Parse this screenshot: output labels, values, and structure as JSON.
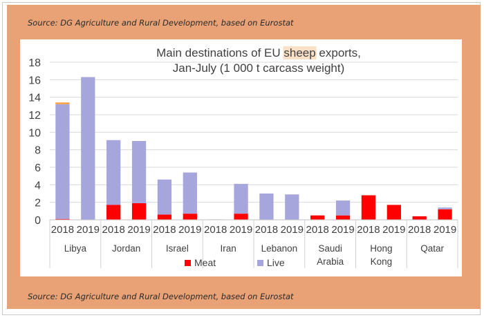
{
  "source_top": "Source: DG Agriculture and Rural Development, based on Eurostat",
  "source_bottom": "Source: DG Agriculture and Rural Development, based on Eurostat",
  "chart_data": {
    "type": "bar",
    "stacked": true,
    "title_line1_prefix": "Main destinations of EU ",
    "title_highlight": "sheep",
    "title_line1_suffix": " exports,",
    "title_line2": "Jan-July (1 000 t carcass weight)",
    "ylim": [
      0,
      18
    ],
    "yticks": [
      0,
      2,
      4,
      6,
      8,
      10,
      12,
      14,
      16,
      18
    ],
    "years": [
      "2018",
      "2019"
    ],
    "countries": [
      {
        "label": [
          "Libya"
        ]
      },
      {
        "label": [
          "Jordan"
        ]
      },
      {
        "label": [
          "Israel"
        ]
      },
      {
        "label": [
          "Iran"
        ]
      },
      {
        "label": [
          "Lebanon"
        ]
      },
      {
        "label": [
          "Saudi",
          "Arabia"
        ]
      },
      {
        "label": [
          "Hong",
          "Kong"
        ]
      },
      {
        "label": [
          "Qatar"
        ]
      }
    ],
    "series": [
      {
        "name": "Meat",
        "color": "#ff0000",
        "values": [
          0.1,
          0,
          1.7,
          1.9,
          0.6,
          0.7,
          0,
          0.7,
          0,
          0,
          0.5,
          0.5,
          2.8,
          1.7,
          0.4,
          1.2
        ]
      },
      {
        "name": "Live",
        "color": "#a6a6dc",
        "values": [
          13.1,
          16.3,
          7.4,
          7.1,
          4.0,
          4.7,
          0.05,
          3.4,
          3.0,
          2.9,
          0,
          1.7,
          0,
          0,
          0,
          0.2
        ]
      }
    ],
    "extra_segments": [
      {
        "index": 0,
        "value": 0.2,
        "color": "#f5a042"
      }
    ],
    "highlight_color": "#fbe0c8",
    "legend_position": "bottom-center",
    "grid": true
  }
}
